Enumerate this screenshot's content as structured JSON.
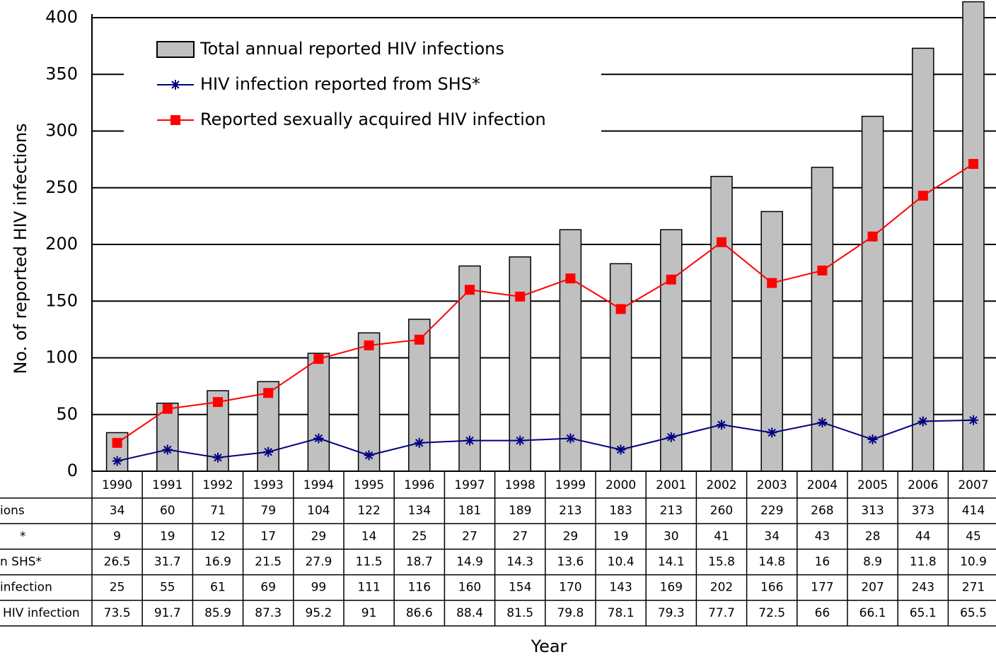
{
  "chart_data": {
    "type": "bar",
    "y_label": "No. of reported HIV infections",
    "x_label": "Year",
    "categories": [
      "1990",
      "1991",
      "1992",
      "1993",
      "1994",
      "1995",
      "1996",
      "1997",
      "1998",
      "1999",
      "2000",
      "2001",
      "2002",
      "2003",
      "2004",
      "2005",
      "2006",
      "2007"
    ],
    "ylim": [
      0,
      400
    ],
    "yticks": [
      0,
      50,
      100,
      150,
      200,
      250,
      300,
      350,
      400
    ],
    "grid": true,
    "series": [
      {
        "name": "Total annual reported HIV infections",
        "type": "bar",
        "color": "#c0c0c0",
        "row_label": "ions",
        "values": [
          34,
          60,
          71,
          79,
          104,
          122,
          134,
          181,
          189,
          213,
          183,
          213,
          260,
          229,
          268,
          313,
          373,
          414
        ]
      },
      {
        "name": "HIV infection reported from SHS*",
        "type": "line",
        "marker": "asterisk",
        "color": "#000080",
        "row_label": "*",
        "values": [
          9,
          19,
          12,
          17,
          29,
          14,
          25,
          27,
          27,
          29,
          19,
          30,
          41,
          34,
          43,
          28,
          44,
          45
        ]
      },
      {
        "name": "Reported sexually acquired HIV infection",
        "type": "line",
        "marker": "square",
        "color": "#ff0000",
        "row_label": "infection",
        "values": [
          25,
          55,
          61,
          69,
          99,
          111,
          116,
          160,
          154,
          170,
          143,
          169,
          202,
          166,
          177,
          207,
          243,
          271
        ]
      }
    ],
    "extra_rows": [
      {
        "row_label": "n SHS*",
        "values": [
          26.5,
          31.7,
          16.9,
          21.5,
          27.9,
          11.5,
          18.7,
          14.9,
          14.3,
          13.6,
          10.4,
          14.1,
          15.8,
          14.8,
          16,
          8.9,
          11.8,
          10.9
        ]
      },
      {
        "row_label": "HIV infection",
        "values": [
          73.5,
          91.7,
          85.9,
          87.3,
          95.2,
          91,
          86.6,
          88.4,
          81.5,
          79.8,
          78.1,
          79.3,
          77.7,
          72.5,
          66,
          66.1,
          65.1,
          65.5
        ]
      }
    ]
  }
}
